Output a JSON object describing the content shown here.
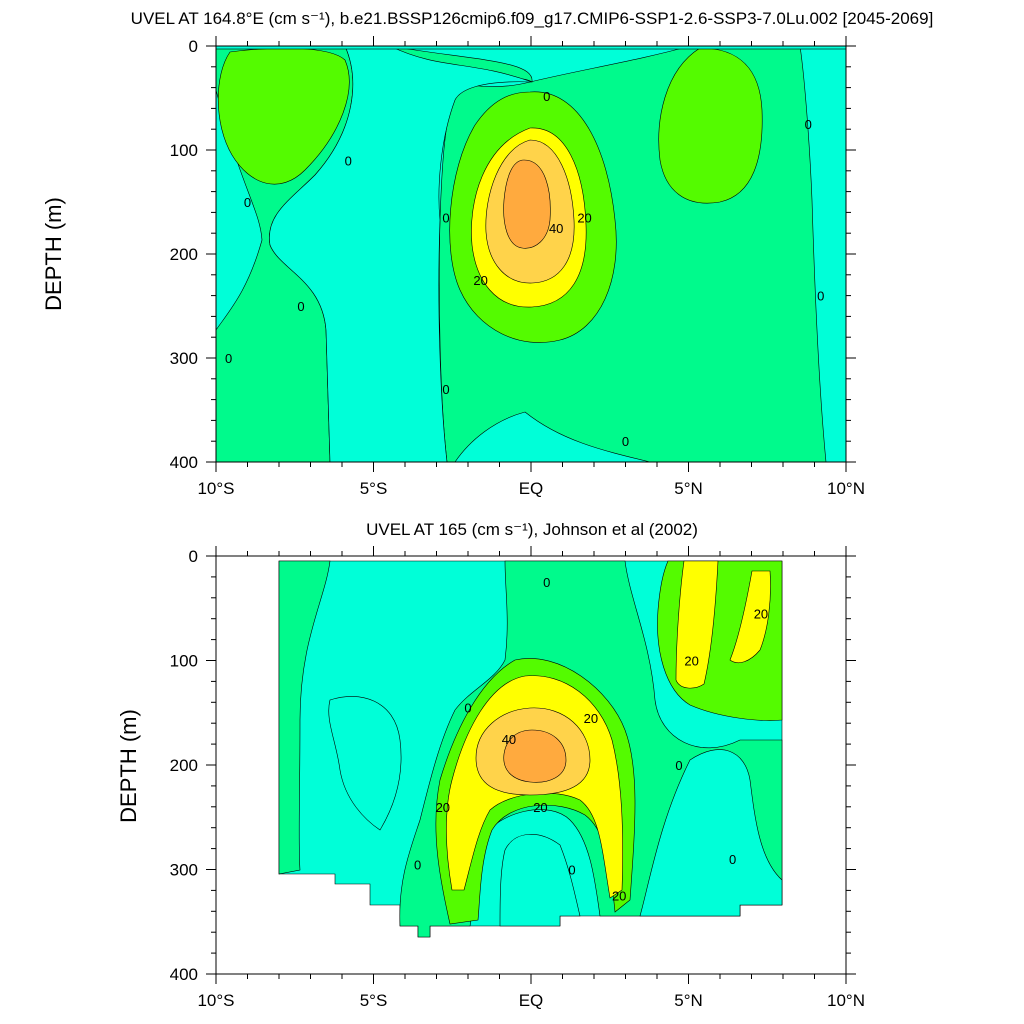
{
  "palette": {
    "c1": "#00ffd8",
    "c2": "#00fa8c",
    "c3": "#54fb00",
    "c4": "#ffff00",
    "c5": "#ffd34a",
    "c6": "#ffaa3e",
    "line": "#000000"
  },
  "chart_data": [
    {
      "type": "contour",
      "title": "UVEL AT 164.8°E (cm s⁻¹), b.e21.BSSP126cmip6.f09_g17.CMIP6-SSP1-2.6-SSP3-7.0Lu.002 [2045-2069]",
      "ylabel": "DEPTH (m)",
      "xlabel": "",
      "x_ticks": [
        "10°S",
        "5°S",
        "EQ",
        "5°N",
        "10°N"
      ],
      "x_range_lat": [
        -10,
        10
      ],
      "y_ticks": [
        "0",
        "100",
        "200",
        "300",
        "400"
      ],
      "y_range_m": [
        0,
        400
      ],
      "y_reversed": true,
      "contour_labels": [
        {
          "text": "0",
          "lat": -9.0,
          "depth": 150
        },
        {
          "text": "0",
          "lat": -5.8,
          "depth": 110
        },
        {
          "text": "0",
          "lat": -7.3,
          "depth": 250
        },
        {
          "text": "0",
          "lat": -9.6,
          "depth": 300
        },
        {
          "text": "0",
          "lat": -2.7,
          "depth": 165
        },
        {
          "text": "0",
          "lat": -2.7,
          "depth": 330
        },
        {
          "text": "0",
          "lat": 0.5,
          "depth": 48
        },
        {
          "text": "0",
          "lat": 3.0,
          "depth": 380
        },
        {
          "text": "0",
          "lat": 8.8,
          "depth": 75
        },
        {
          "text": "0",
          "lat": 9.2,
          "depth": 240
        },
        {
          "text": "20",
          "lat": 1.7,
          "depth": 165
        },
        {
          "text": "20",
          "lat": -1.6,
          "depth": 225
        },
        {
          "text": "40",
          "lat": 0.8,
          "depth": 175
        }
      ]
    },
    {
      "type": "contour",
      "title": "UVEL AT 165 (cm s⁻¹), Johnson et al (2002)",
      "ylabel": "DEPTH (m)",
      "xlabel": "",
      "x_ticks": [
        "10°S",
        "5°S",
        "EQ",
        "5°N",
        "10°N"
      ],
      "x_range_lat": [
        -10,
        10
      ],
      "y_ticks": [
        "0",
        "100",
        "200",
        "300",
        "400"
      ],
      "y_range_m": [
        0,
        400
      ],
      "y_reversed": true,
      "contour_labels": [
        {
          "text": "0",
          "lat": 0.5,
          "depth": 25
        },
        {
          "text": "0",
          "lat": -2.0,
          "depth": 145
        },
        {
          "text": "0",
          "lat": 4.7,
          "depth": 200
        },
        {
          "text": "0",
          "lat": -3.6,
          "depth": 295
        },
        {
          "text": "0",
          "lat": 1.3,
          "depth": 300
        },
        {
          "text": "0",
          "lat": 6.4,
          "depth": 290
        },
        {
          "text": "20",
          "lat": 7.3,
          "depth": 55
        },
        {
          "text": "20",
          "lat": 5.1,
          "depth": 100
        },
        {
          "text": "20",
          "lat": 1.9,
          "depth": 155
        },
        {
          "text": "20",
          "lat": -2.8,
          "depth": 240
        },
        {
          "text": "20",
          "lat": 0.3,
          "depth": 240
        },
        {
          "text": "20",
          "lat": 2.8,
          "depth": 325
        },
        {
          "text": "40",
          "lat": -0.7,
          "depth": 175
        }
      ]
    }
  ]
}
